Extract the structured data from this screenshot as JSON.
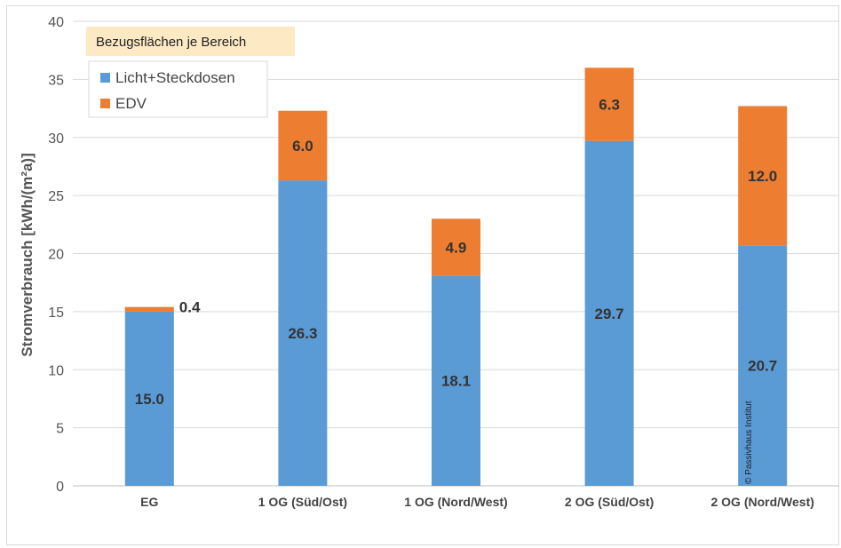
{
  "chart_data": {
    "type": "bar",
    "stacked": true,
    "subtitle": "Bezugsflächen je Bereich",
    "ylabel": "Stromverbrauch [kWh/(m²a)]",
    "xlabel": "",
    "ylim": [
      0,
      40
    ],
    "yticks": [
      0,
      5,
      10,
      15,
      20,
      25,
      30,
      35,
      40
    ],
    "grid": true,
    "legend_position": "top-left",
    "categories": [
      "EG",
      "1 OG (Süd/Ost)",
      "1 OG (Nord/West)",
      "2 OG (Süd/Ost)",
      "2 OG (Nord/West)"
    ],
    "series": [
      {
        "name": "Licht+Steckdosen",
        "color": "#5b9bd5",
        "values": [
          15.0,
          26.3,
          18.1,
          29.7,
          20.7
        ],
        "labels": [
          "15.0",
          "26.3",
          "18.1",
          "29.7",
          "20.7"
        ]
      },
      {
        "name": "EDV",
        "color": "#ed7d31",
        "values": [
          0.4,
          6.0,
          4.9,
          6.3,
          12.0
        ],
        "labels": [
          "0.4",
          "6.0",
          "4.9",
          "6.3",
          "12.0"
        ]
      }
    ],
    "annotations": [
      "© Passivhaus Institut"
    ]
  }
}
